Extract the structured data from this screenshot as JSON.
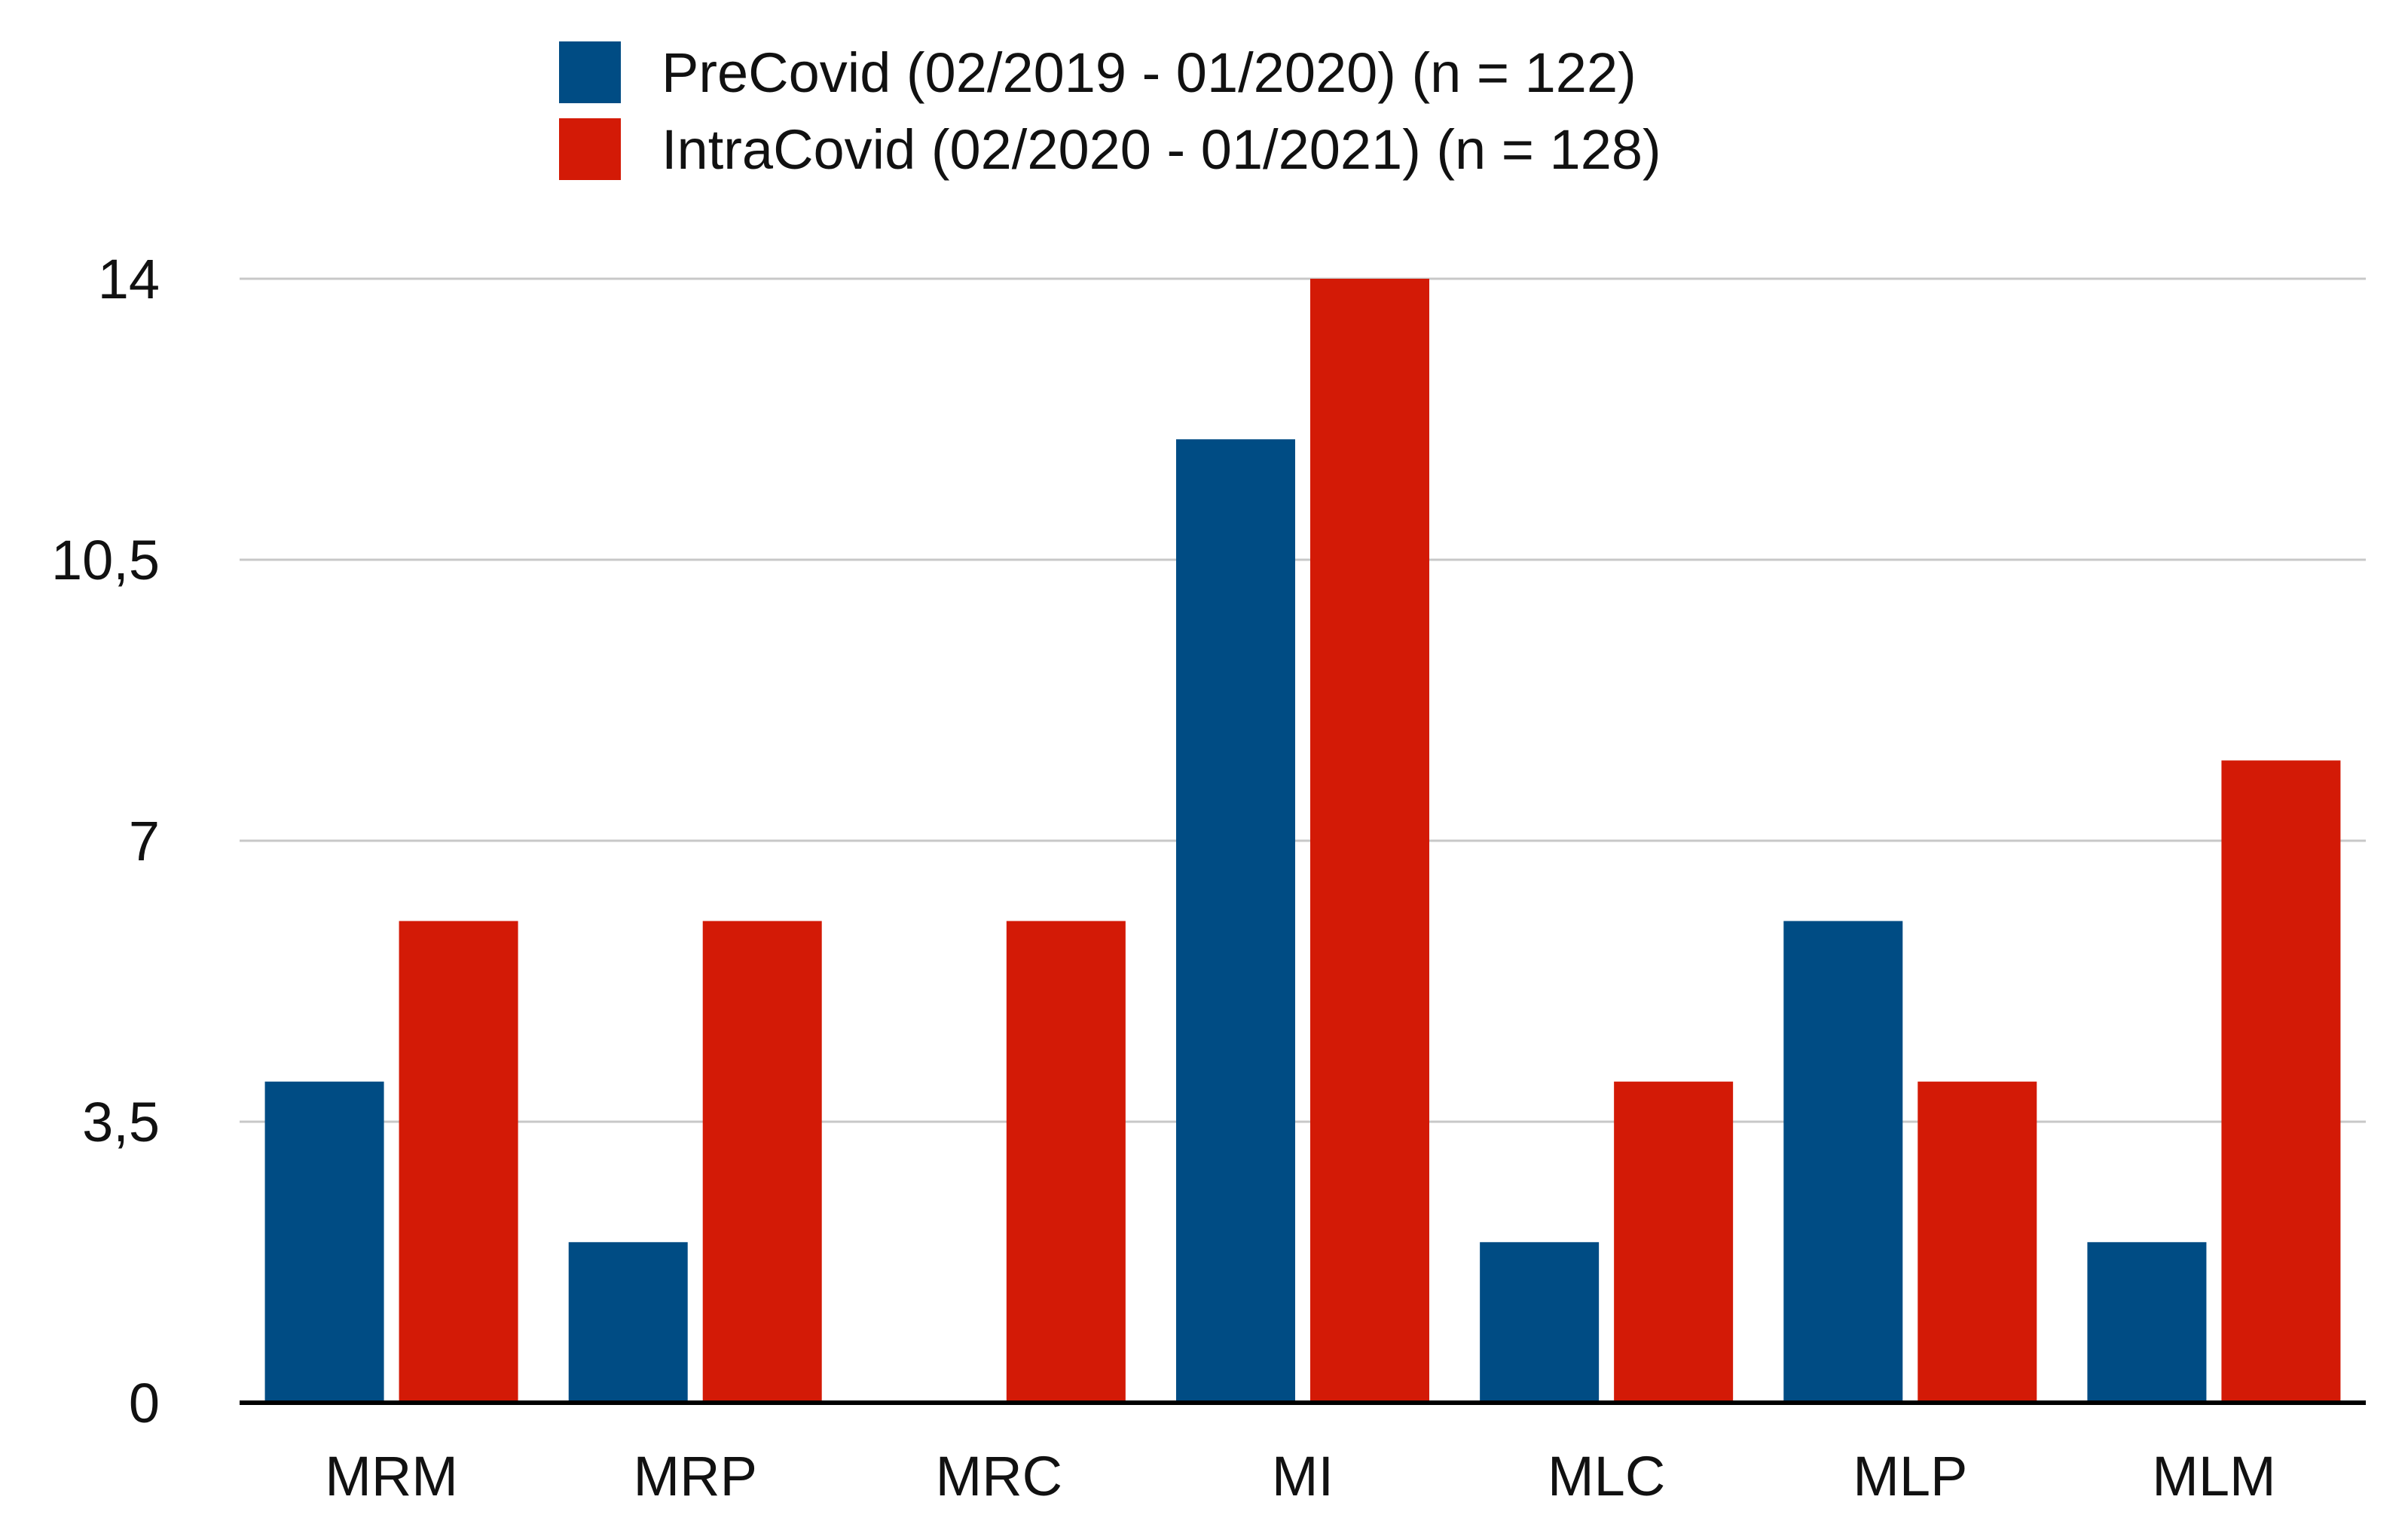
{
  "chart_data": {
    "type": "bar",
    "title": "",
    "xlabel": "",
    "ylabel": "",
    "categories": [
      "MRM",
      "MRP",
      "MRC",
      "MI",
      "MLC",
      "MLP",
      "MLM"
    ],
    "series": [
      {
        "name": "PreCovid (02/2019 - 01/2020) (n = 122)",
        "color": "#004c84",
        "values": [
          4,
          2,
          0,
          12,
          2,
          6,
          2
        ]
      },
      {
        "name": "IntraCovid (02/2020 - 01/2021) (n = 128)",
        "color": "#d31a06",
        "values": [
          6,
          6,
          6,
          14,
          4,
          4,
          8
        ]
      }
    ],
    "ylim": [
      0,
      14
    ],
    "yticks": [
      {
        "value": 0,
        "label": "0"
      },
      {
        "value": 3.5,
        "label": "3,5"
      },
      {
        "value": 7,
        "label": "7"
      },
      {
        "value": 10.5,
        "label": "10,5"
      },
      {
        "value": 14,
        "label": "14"
      }
    ],
    "grid": true,
    "legend_position": "top-center"
  }
}
